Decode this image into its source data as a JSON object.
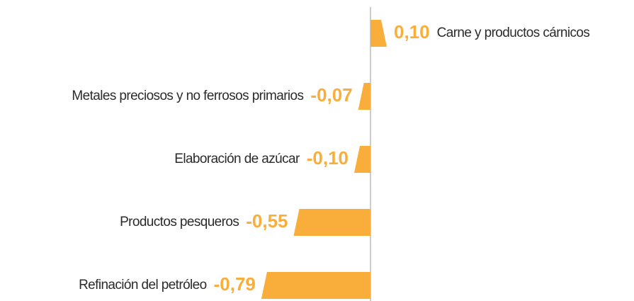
{
  "chart_data": {
    "type": "bar",
    "orientation": "horizontal",
    "categories": [
      "Carne y productos cárnicos",
      "Metales preciosos y no ferrosos primarios",
      "Elaboración de azúcar",
      "Productos pesqueros",
      "Refinación del petróleo"
    ],
    "values": [
      0.1,
      -0.07,
      -0.1,
      -0.55,
      -0.79
    ],
    "value_labels": [
      "0,10",
      "-0,07",
      "-0,10",
      "-0,55",
      "-0,79"
    ],
    "color": "#f9ae3c"
  }
}
